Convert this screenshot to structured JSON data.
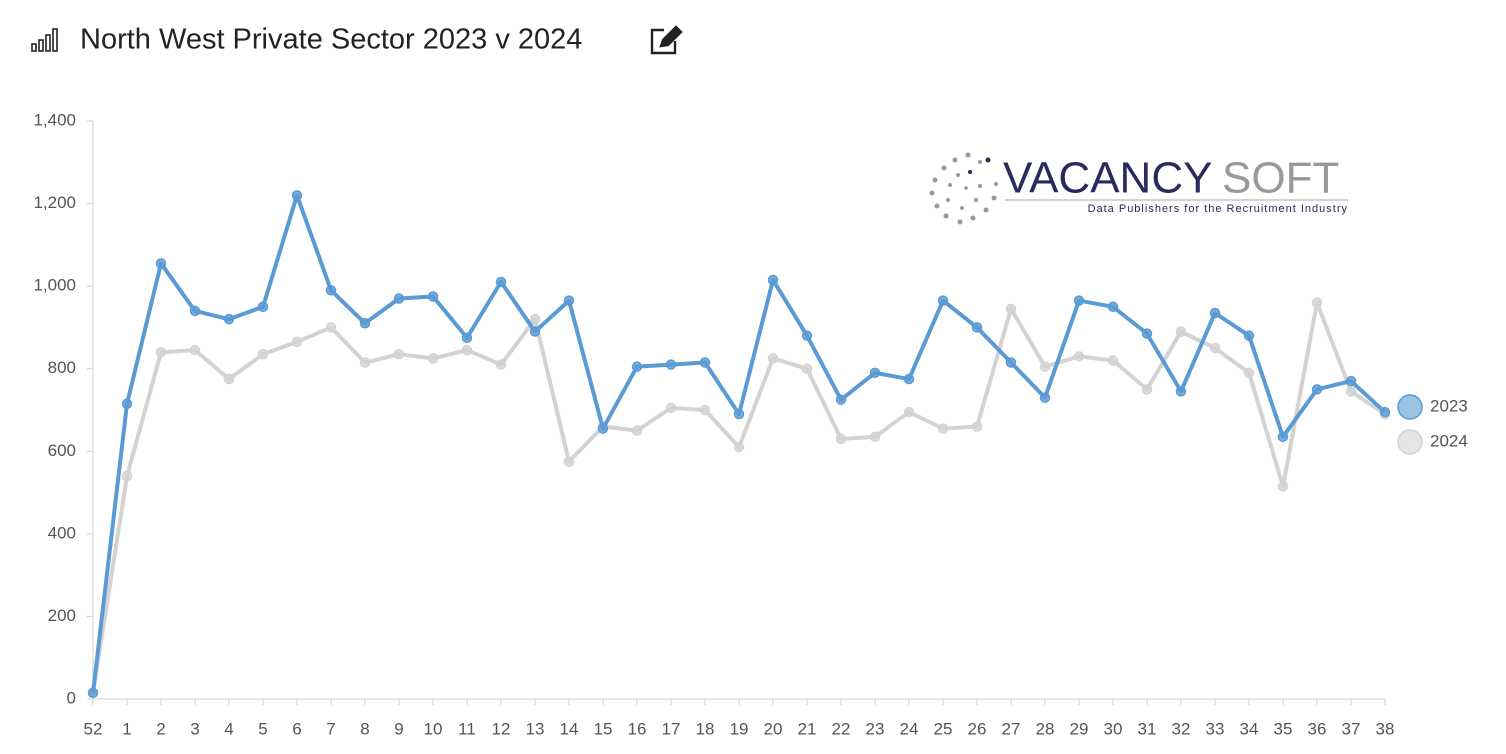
{
  "chart_data": {
    "type": "line",
    "title": "North West Private Sector 2023 v 2024",
    "categories": [
      "52",
      "1",
      "2",
      "3",
      "4",
      "5",
      "6",
      "7",
      "8",
      "9",
      "10",
      "11",
      "12",
      "13",
      "14",
      "15",
      "16",
      "17",
      "18",
      "19",
      "20",
      "21",
      "22",
      "23",
      "24",
      "25",
      "26",
      "27",
      "28",
      "29",
      "30",
      "31",
      "32",
      "33",
      "34",
      "35",
      "36",
      "37",
      "38"
    ],
    "series": [
      {
        "name": "2023",
        "color": "#5a9bd4",
        "values": [
          15,
          715,
          1055,
          940,
          920,
          950,
          1220,
          990,
          910,
          970,
          975,
          875,
          1010,
          890,
          965,
          655,
          805,
          810,
          815,
          690,
          1015,
          880,
          725,
          790,
          775,
          965,
          900,
          815,
          730,
          965,
          950,
          885,
          745,
          935,
          880,
          635,
          750,
          770,
          695
        ]
      },
      {
        "name": "2024",
        "color": "#d3d3d3",
        "values": [
          15,
          540,
          840,
          845,
          775,
          835,
          865,
          900,
          815,
          835,
          825,
          845,
          810,
          920,
          575,
          660,
          650,
          705,
          700,
          610,
          825,
          800,
          630,
          635,
          695,
          655,
          660,
          945,
          805,
          830,
          820,
          750,
          890,
          850,
          790,
          515,
          960,
          745,
          690
        ]
      }
    ],
    "ylim": [
      0,
      1400
    ],
    "yticks": [
      0,
      200,
      400,
      600,
      800,
      {
        "value": 1000,
        "label": "1,000"
      },
      {
        "value": 1200,
        "label": "1,200"
      },
      {
        "value": 1400,
        "label": "1,400"
      }
    ],
    "legend": "right"
  },
  "logo": {
    "text_1": "VACANCY",
    "text_2": "SOFT",
    "tagline": "Data Publishers for the Recruitment Industry"
  }
}
